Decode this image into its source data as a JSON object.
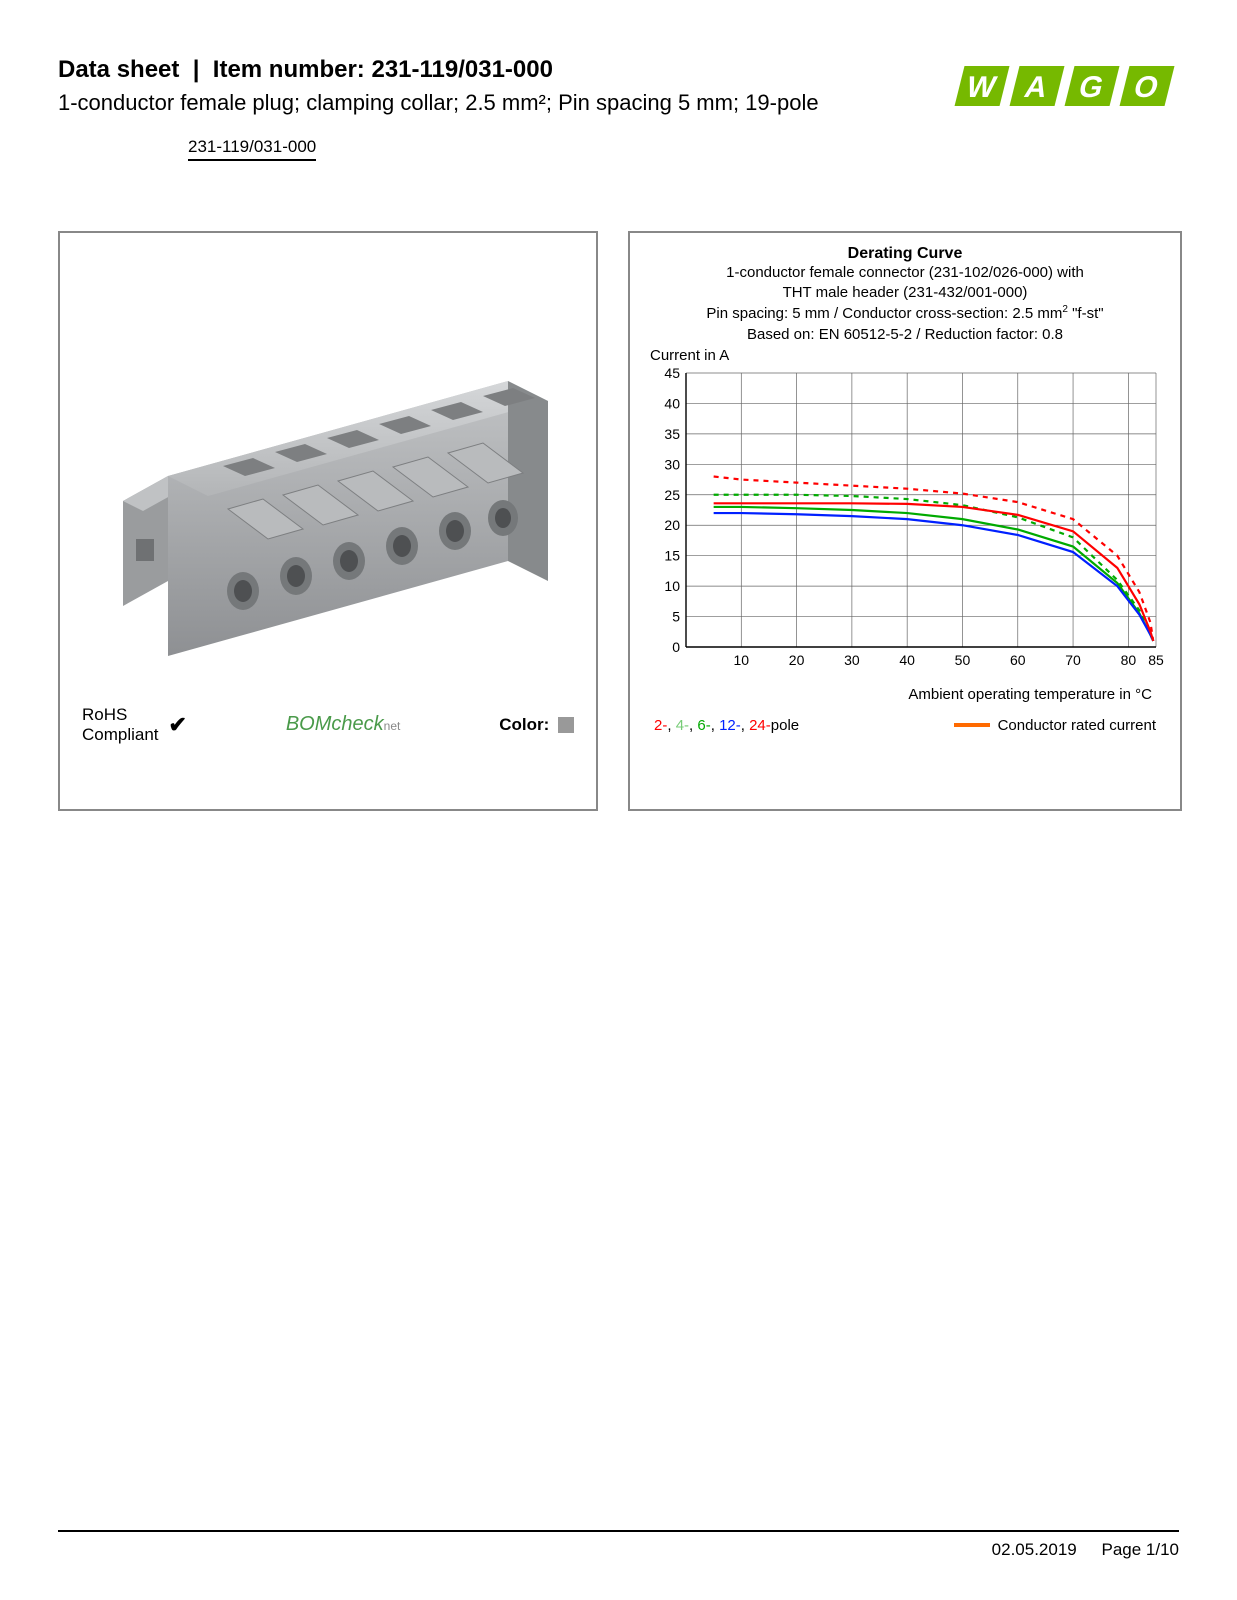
{
  "header": {
    "label_datasheet": "Data sheet",
    "label_itemnumber": "Item number:",
    "item_number": "231-119/031-000",
    "subtitle": "1-conductor female plug; clamping collar; 2.5 mm²; Pin spacing 5 mm; 19-pole",
    "item_link": "231-119/031-000",
    "brand": "WAGO",
    "brand_color": "#76b900"
  },
  "product_panel": {
    "rohs_line1": "RoHS",
    "rohs_line2": "Compliant",
    "check_glyph": "✔",
    "bomcheck": "BOMcheck",
    "bomcheck_suffix": "net",
    "color_label": "Color:",
    "color_swatch": "#999999",
    "connector_color": "#aeb0b2"
  },
  "chart": {
    "title": "Derating Curve",
    "sub1": "1-conductor female connector (231-102/026-000) with",
    "sub2": "THT male header (231-432/001-000)",
    "sub3_a": "Pin spacing: 5 mm / Conductor cross-section: 2.5 mm",
    "sub3_b": " \"f-st\"",
    "sub4": "Based on: EN 60512-5-2 / Reduction factor: 0.8",
    "y_axis_label": "Current in A",
    "x_axis_label": "Ambient operating temperature in °C",
    "xlim": [
      0,
      85
    ],
    "xticks": [
      10,
      20,
      30,
      40,
      50,
      60,
      70,
      80,
      85
    ],
    "ylim": [
      0,
      45
    ],
    "yticks": [
      0,
      5,
      10,
      15,
      20,
      25,
      30,
      35,
      40,
      45
    ],
    "grid_color": "#666666",
    "series": {
      "p2": {
        "color": "#ff0000",
        "dash": true,
        "pts": [
          [
            5,
            28
          ],
          [
            10,
            27.5
          ],
          [
            20,
            27
          ],
          [
            30,
            26.5
          ],
          [
            40,
            26
          ],
          [
            50,
            25.2
          ],
          [
            60,
            23.8
          ],
          [
            70,
            21
          ],
          [
            78,
            15
          ],
          [
            82,
            9
          ],
          [
            84,
            4
          ],
          [
            84.5,
            1
          ]
        ]
      },
      "p4": {
        "color": "#00aa00",
        "dash": true,
        "pts": [
          [
            5,
            25
          ],
          [
            10,
            25
          ],
          [
            20,
            25
          ],
          [
            30,
            24.8
          ],
          [
            40,
            24.3
          ],
          [
            50,
            23.3
          ],
          [
            60,
            21.3
          ],
          [
            70,
            18
          ],
          [
            78,
            11
          ],
          [
            82,
            6
          ],
          [
            84,
            2
          ],
          [
            84.5,
            1
          ]
        ]
      },
      "p6": {
        "color": "#00aa00",
        "dash": false,
        "pts": [
          [
            5,
            23
          ],
          [
            10,
            23
          ],
          [
            20,
            22.8
          ],
          [
            30,
            22.5
          ],
          [
            40,
            22
          ],
          [
            50,
            21
          ],
          [
            60,
            19.3
          ],
          [
            70,
            16.5
          ],
          [
            78,
            10.5
          ],
          [
            82,
            5.5
          ],
          [
            84,
            2
          ],
          [
            84.5,
            1
          ]
        ]
      },
      "p12": {
        "color": "#0020ff",
        "dash": false,
        "pts": [
          [
            5,
            22
          ],
          [
            10,
            22
          ],
          [
            20,
            21.8
          ],
          [
            30,
            21.5
          ],
          [
            40,
            21
          ],
          [
            50,
            20
          ],
          [
            60,
            18.4
          ],
          [
            70,
            15.6
          ],
          [
            78,
            10
          ],
          [
            82,
            5.3
          ],
          [
            84,
            2
          ],
          [
            84.5,
            1
          ]
        ]
      },
      "p24": {
        "color": "#ff0000",
        "dash": false,
        "pts": [
          [
            5,
            23.6
          ],
          [
            10,
            23.6
          ],
          [
            20,
            23.6
          ],
          [
            30,
            23.6
          ],
          [
            40,
            23.5
          ],
          [
            50,
            23
          ],
          [
            60,
            21.7
          ],
          [
            70,
            19
          ],
          [
            78,
            13
          ],
          [
            82,
            7
          ],
          [
            84,
            2.5
          ],
          [
            84.5,
            1
          ]
        ]
      }
    },
    "legend": {
      "p2": {
        "label": "2-",
        "color": "#ff0000"
      },
      "p4": {
        "label": "4-",
        "color": "#77cc77"
      },
      "p6": {
        "label": "6-",
        "color": "#00aa00"
      },
      "p12": {
        "label": "12-",
        "color": "#0020ff"
      },
      "p24": {
        "label": "24-",
        "color": "#ff0000"
      },
      "suffix": "pole",
      "conductor": "Conductor rated current",
      "conductor_color": "#ff6a00"
    }
  },
  "footer": {
    "date": "02.05.2019",
    "page": "Page 1/10"
  }
}
